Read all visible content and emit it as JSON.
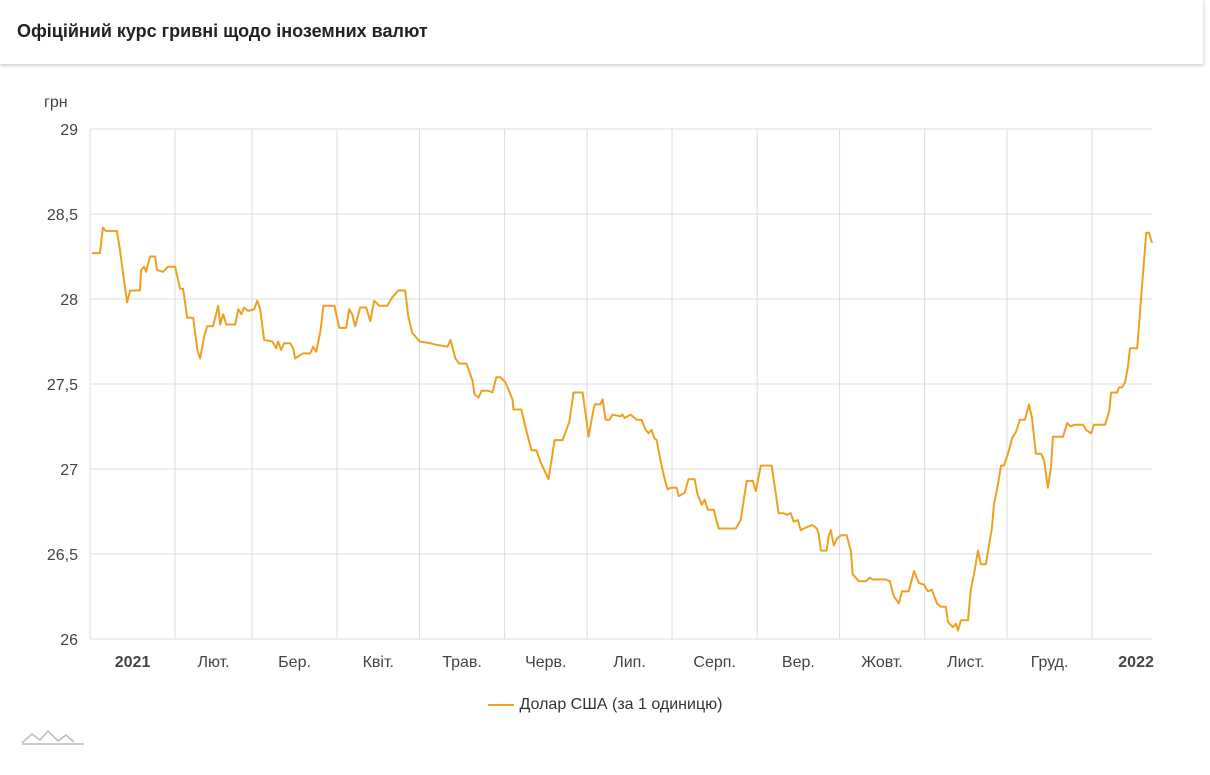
{
  "header": {
    "title": "Офіційний курс гривні щодо іноземних валют"
  },
  "colors": {
    "line": "#f0a020",
    "grid": "#dcdcdc"
  },
  "logo_icon": "mountain-line-icon",
  "chart_data": {
    "type": "line",
    "title": "Офіційний курс гривні щодо іноземних валют",
    "ylabel": "грн",
    "xlabel": "",
    "x_unit": "days since 2021-01-01",
    "xlim": [
      0,
      386.8
    ],
    "ylim": [
      26,
      29
    ],
    "grid": true,
    "legend_position": "bottom",
    "y_ticks": [
      {
        "value": 26,
        "label": "26"
      },
      {
        "value": 26.5,
        "label": "26,5"
      },
      {
        "value": 27,
        "label": "27"
      },
      {
        "value": 27.5,
        "label": "27,5"
      },
      {
        "value": 28,
        "label": "28"
      },
      {
        "value": 28.5,
        "label": "28,5"
      },
      {
        "value": 29,
        "label": "29"
      }
    ],
    "x_gridlines": [
      31,
      59,
      90,
      120,
      151,
      181,
      212,
      243,
      273,
      304,
      334,
      365
    ],
    "x_labels": [
      {
        "day": 15.5,
        "label": "2021",
        "bold": true
      },
      {
        "day": 45,
        "label": "Лют."
      },
      {
        "day": 74.5,
        "label": "Бер."
      },
      {
        "day": 105,
        "label": "Квіт."
      },
      {
        "day": 135.5,
        "label": "Трав."
      },
      {
        "day": 166,
        "label": "Черв."
      },
      {
        "day": 196.5,
        "label": "Лип."
      },
      {
        "day": 227.5,
        "label": "Серп."
      },
      {
        "day": 258,
        "label": "Вер."
      },
      {
        "day": 288.5,
        "label": "Жовт."
      },
      {
        "day": 319,
        "label": "Лист."
      },
      {
        "day": 349.5,
        "label": "Груд."
      },
      {
        "day": 381,
        "label": "2022",
        "bold": true
      }
    ],
    "series": [
      {
        "name": "Долар США (за 1 одиницю)",
        "points": [
          [
            0.7,
            28.27
          ],
          [
            3.6,
            28.27
          ],
          [
            4.7,
            28.42
          ],
          [
            5.8,
            28.4
          ],
          [
            9.8,
            28.4
          ],
          [
            10.9,
            28.29
          ],
          [
            12.4,
            28.11
          ],
          [
            13.5,
            27.98
          ],
          [
            14.6,
            28.05
          ],
          [
            18.2,
            28.05
          ],
          [
            18.6,
            28.17
          ],
          [
            19.7,
            28.19
          ],
          [
            20.4,
            28.16
          ],
          [
            21.9,
            28.25
          ],
          [
            23.7,
            28.25
          ],
          [
            24.4,
            28.17
          ],
          [
            26.6,
            28.16
          ],
          [
            28.4,
            28.19
          ],
          [
            31.0,
            28.19
          ],
          [
            32.8,
            28.06
          ],
          [
            33.9,
            28.06
          ],
          [
            35.4,
            27.89
          ],
          [
            37.6,
            27.89
          ],
          [
            39.1,
            27.7
          ],
          [
            40.1,
            27.65
          ],
          [
            41.6,
            27.78
          ],
          [
            42.7,
            27.84
          ],
          [
            44.8,
            27.84
          ],
          [
            46.7,
            27.96
          ],
          [
            47.4,
            27.85
          ],
          [
            48.5,
            27.91
          ],
          [
            49.6,
            27.85
          ],
          [
            52.9,
            27.85
          ],
          [
            54.0,
            27.94
          ],
          [
            55.1,
            27.91
          ],
          [
            56.1,
            27.95
          ],
          [
            57.6,
            27.93
          ],
          [
            59.8,
            27.94
          ],
          [
            60.9,
            27.99
          ],
          [
            62.0,
            27.94
          ],
          [
            63.4,
            27.76
          ],
          [
            66.4,
            27.75
          ],
          [
            67.8,
            27.71
          ],
          [
            68.5,
            27.75
          ],
          [
            69.6,
            27.7
          ],
          [
            70.7,
            27.74
          ],
          [
            72.9,
            27.74
          ],
          [
            74.0,
            27.71
          ],
          [
            74.7,
            27.65
          ],
          [
            76.6,
            27.67
          ],
          [
            77.7,
            27.68
          ],
          [
            80.2,
            27.68
          ],
          [
            81.3,
            27.72
          ],
          [
            82.4,
            27.69
          ],
          [
            83.9,
            27.81
          ],
          [
            85.0,
            27.96
          ],
          [
            89.0,
            27.96
          ],
          [
            90.8,
            27.83
          ],
          [
            93.3,
            27.83
          ],
          [
            94.4,
            27.94
          ],
          [
            95.5,
            27.91
          ],
          [
            96.6,
            27.84
          ],
          [
            98.4,
            27.95
          ],
          [
            100.6,
            27.95
          ],
          [
            102.1,
            27.87
          ],
          [
            103.5,
            27.99
          ],
          [
            105.4,
            27.96
          ],
          [
            108.3,
            27.96
          ],
          [
            110.1,
            28.01
          ],
          [
            112.3,
            28.05
          ],
          [
            114.8,
            28.05
          ],
          [
            115.9,
            27.9
          ],
          [
            117.4,
            27.8
          ],
          [
            118.5,
            27.78
          ],
          [
            120.0,
            27.75
          ],
          [
            124.0,
            27.74
          ],
          [
            126.2,
            27.73
          ],
          [
            130.2,
            27.72
          ],
          [
            131.3,
            27.76
          ],
          [
            133.1,
            27.65
          ],
          [
            134.5,
            27.62
          ],
          [
            137.1,
            27.62
          ],
          [
            139.3,
            27.52
          ],
          [
            140.0,
            27.44
          ],
          [
            141.5,
            27.42
          ],
          [
            142.6,
            27.46
          ],
          [
            145.1,
            27.46
          ],
          [
            146.6,
            27.45
          ],
          [
            148.0,
            27.54
          ],
          [
            149.5,
            27.54
          ],
          [
            151.3,
            27.51
          ],
          [
            153.9,
            27.41
          ],
          [
            154.2,
            27.35
          ],
          [
            157.1,
            27.35
          ],
          [
            159.0,
            27.22
          ],
          [
            160.8,
            27.11
          ],
          [
            162.6,
            27.11
          ],
          [
            164.1,
            27.04
          ],
          [
            167.0,
            26.94
          ],
          [
            169.2,
            27.17
          ],
          [
            172.1,
            27.17
          ],
          [
            173.5,
            27.23
          ],
          [
            174.6,
            27.28
          ],
          [
            176.1,
            27.45
          ],
          [
            179.4,
            27.45
          ],
          [
            180.8,
            27.29
          ],
          [
            181.6,
            27.19
          ],
          [
            182.7,
            27.29
          ],
          [
            183.8,
            27.38
          ],
          [
            185.9,
            27.38
          ],
          [
            186.7,
            27.41
          ],
          [
            187.8,
            27.29
          ],
          [
            189.2,
            27.29
          ],
          [
            190.3,
            27.32
          ],
          [
            193.2,
            27.31
          ],
          [
            194.0,
            27.32
          ],
          [
            194.7,
            27.3
          ],
          [
            196.9,
            27.32
          ],
          [
            199.1,
            27.29
          ],
          [
            200.9,
            27.29
          ],
          [
            202.4,
            27.23
          ],
          [
            203.4,
            27.21
          ],
          [
            204.5,
            27.23
          ],
          [
            205.6,
            27.18
          ],
          [
            206.4,
            27.17
          ],
          [
            207.8,
            27.05
          ],
          [
            209.3,
            26.94
          ],
          [
            210.4,
            26.88
          ],
          [
            211.5,
            26.89
          ],
          [
            213.7,
            26.89
          ],
          [
            214.4,
            26.84
          ],
          [
            215.5,
            26.85
          ],
          [
            216.6,
            26.86
          ],
          [
            218.0,
            26.94
          ],
          [
            220.2,
            26.94
          ],
          [
            221.3,
            26.85
          ],
          [
            222.8,
            26.79
          ],
          [
            223.9,
            26.82
          ],
          [
            225.0,
            26.76
          ],
          [
            227.2,
            26.76
          ],
          [
            228.3,
            26.69
          ],
          [
            229.0,
            26.65
          ],
          [
            229.7,
            26.65
          ],
          [
            233.0,
            26.65
          ],
          [
            235.2,
            26.65
          ],
          [
            237.0,
            26.7
          ],
          [
            239.2,
            26.93
          ],
          [
            241.4,
            26.93
          ],
          [
            242.5,
            26.87
          ],
          [
            244.3,
            27.02
          ],
          [
            246.5,
            27.02
          ],
          [
            248.3,
            27.02
          ],
          [
            250.8,
            26.74
          ],
          [
            252.7,
            26.74
          ],
          [
            253.8,
            26.73
          ],
          [
            255.2,
            26.74
          ],
          [
            256.3,
            26.69
          ],
          [
            257.8,
            26.7
          ],
          [
            258.9,
            26.64
          ],
          [
            260.0,
            26.65
          ],
          [
            261.4,
            26.66
          ],
          [
            263.2,
            26.67
          ],
          [
            264.7,
            26.65
          ],
          [
            265.4,
            26.62
          ],
          [
            266.2,
            26.52
          ],
          [
            268.3,
            26.52
          ],
          [
            269.1,
            26.61
          ],
          [
            269.8,
            26.64
          ],
          [
            270.9,
            26.55
          ],
          [
            272.0,
            26.59
          ],
          [
            273.5,
            26.61
          ],
          [
            275.6,
            26.61
          ],
          [
            277.1,
            26.52
          ],
          [
            277.8,
            26.38
          ],
          [
            280.0,
            26.34
          ],
          [
            282.6,
            26.34
          ],
          [
            284.0,
            26.36
          ],
          [
            285.1,
            26.35
          ],
          [
            289.9,
            26.35
          ],
          [
            291.3,
            26.34
          ],
          [
            292.8,
            26.25
          ],
          [
            294.6,
            26.21
          ],
          [
            295.7,
            26.28
          ],
          [
            298.2,
            26.28
          ],
          [
            300.1,
            26.4
          ],
          [
            301.9,
            26.33
          ],
          [
            303.7,
            26.32
          ],
          [
            305.2,
            26.28
          ],
          [
            306.6,
            26.29
          ],
          [
            308.5,
            26.21
          ],
          [
            309.9,
            26.19
          ],
          [
            311.7,
            26.19
          ],
          [
            312.5,
            26.1
          ],
          [
            314.3,
            26.07
          ],
          [
            315.4,
            26.09
          ],
          [
            316.1,
            26.05
          ],
          [
            317.2,
            26.11
          ],
          [
            319.0,
            26.11
          ],
          [
            319.8,
            26.11
          ],
          [
            320.8,
            26.29
          ],
          [
            322.3,
            26.41
          ],
          [
            323.4,
            26.52
          ],
          [
            324.5,
            26.44
          ],
          [
            326.3,
            26.44
          ],
          [
            327.4,
            26.55
          ],
          [
            328.5,
            26.65
          ],
          [
            329.2,
            26.79
          ],
          [
            330.7,
            26.91
          ],
          [
            331.8,
            27.02
          ],
          [
            332.9,
            27.02
          ],
          [
            334.7,
            27.11
          ],
          [
            335.8,
            27.18
          ],
          [
            337.3,
            27.22
          ],
          [
            338.7,
            27.29
          ],
          [
            340.5,
            27.29
          ],
          [
            342.0,
            27.38
          ],
          [
            343.1,
            27.3
          ],
          [
            344.5,
            27.09
          ],
          [
            346.4,
            27.09
          ],
          [
            347.5,
            27.05
          ],
          [
            348.9,
            26.89
          ],
          [
            350.0,
            27.01
          ],
          [
            350.7,
            27.19
          ],
          [
            352.9,
            27.19
          ],
          [
            354.4,
            27.19
          ],
          [
            355.9,
            27.27
          ],
          [
            357.3,
            27.25
          ],
          [
            358.4,
            27.26
          ],
          [
            361.7,
            27.26
          ],
          [
            362.8,
            27.23
          ],
          [
            364.6,
            27.21
          ],
          [
            365.7,
            27.26
          ],
          [
            369.7,
            27.26
          ],
          [
            371.2,
            27.34
          ],
          [
            371.9,
            27.45
          ],
          [
            374.1,
            27.45
          ],
          [
            374.8,
            27.48
          ],
          [
            375.9,
            27.48
          ],
          [
            377.0,
            27.51
          ],
          [
            378.1,
            27.61
          ],
          [
            378.8,
            27.71
          ],
          [
            381.4,
            27.71
          ],
          [
            383.2,
            28.08
          ],
          [
            384.7,
            28.39
          ],
          [
            385.7,
            28.39
          ],
          [
            386.8,
            28.33
          ]
        ]
      }
    ]
  }
}
